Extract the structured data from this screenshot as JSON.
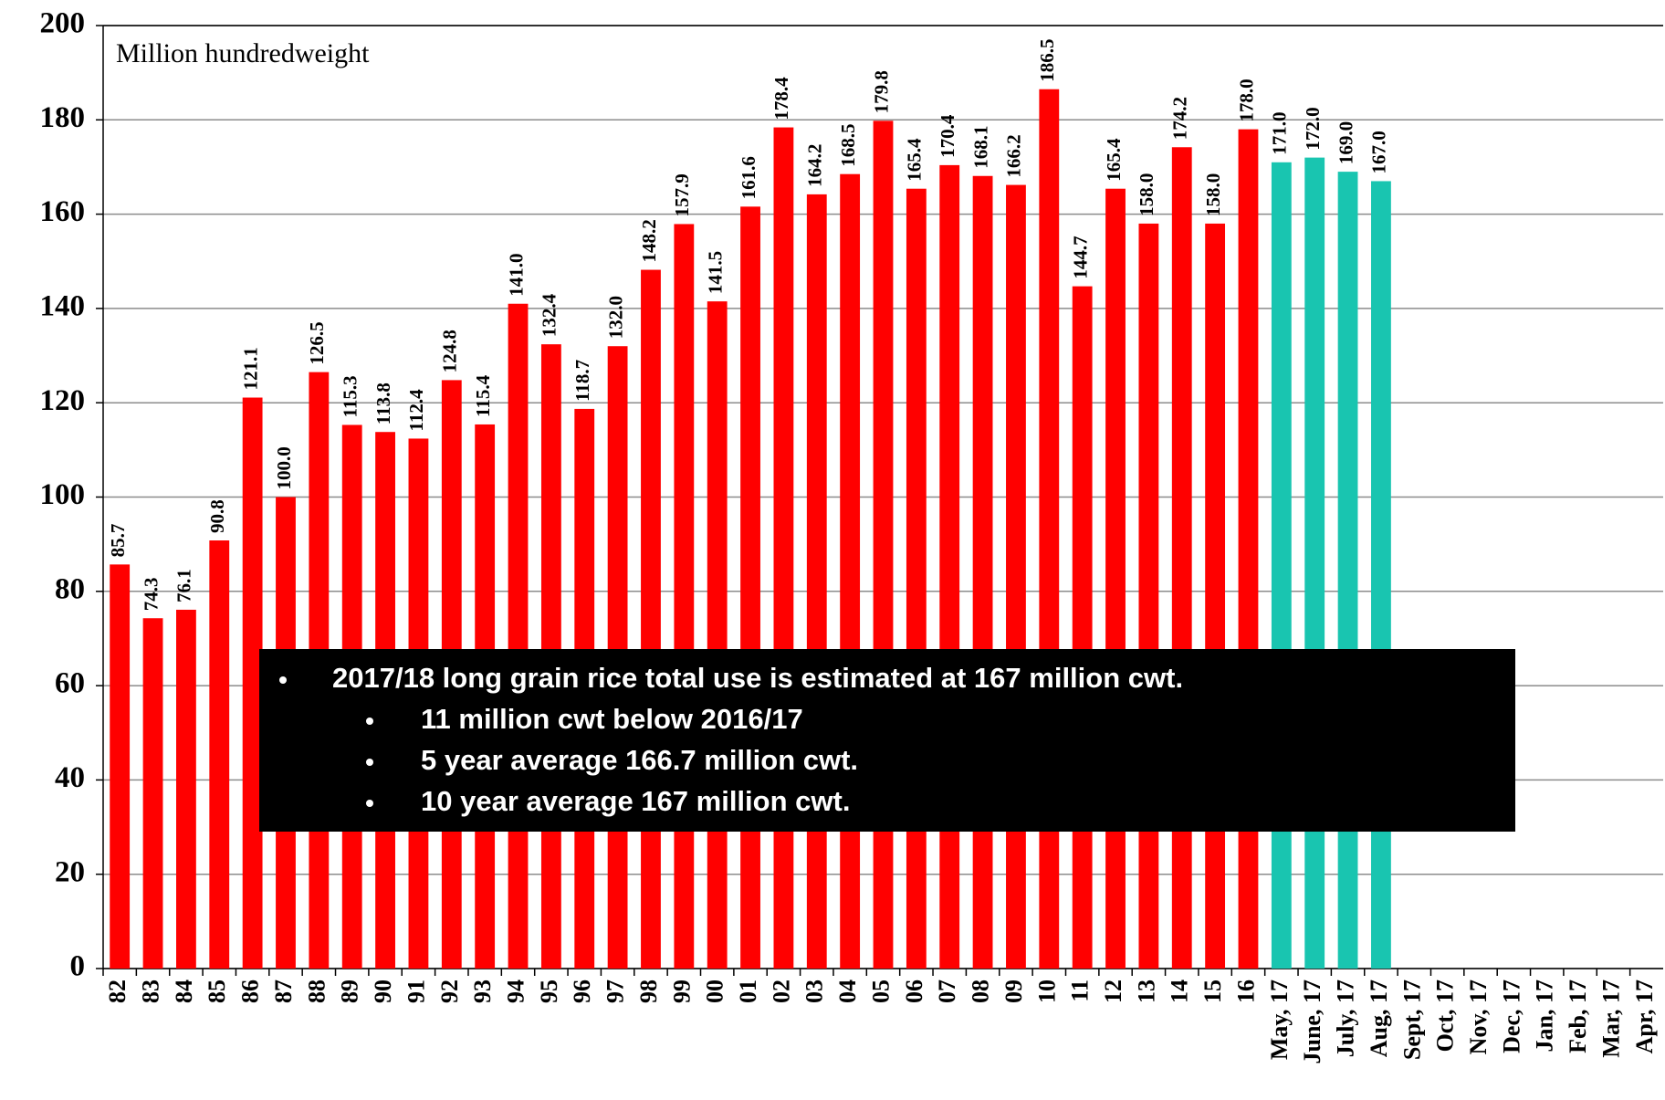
{
  "chart_data": {
    "type": "bar",
    "ylabel": "Million hundredweight",
    "categories": [
      "82",
      "83",
      "84",
      "85",
      "86",
      "87",
      "88",
      "89",
      "90",
      "91",
      "92",
      "93",
      "94",
      "95",
      "96",
      "97",
      "98",
      "99",
      "00",
      "01",
      "02",
      "03",
      "04",
      "05",
      "06",
      "07",
      "08",
      "09",
      "10",
      "11",
      "12",
      "13",
      "14",
      "15",
      "16",
      "May, 17",
      "June, 17",
      "July, 17",
      "Aug, 17",
      "Sept, 17",
      "Oct, 17",
      "Nov, 17",
      "Dec, 17",
      "Jan, 17",
      "Feb, 17",
      "Mar, 17",
      "Apr, 17"
    ],
    "values": [
      85.7,
      74.3,
      76.1,
      90.8,
      121.1,
      100.0,
      126.5,
      115.3,
      113.8,
      112.4,
      124.8,
      115.4,
      141.0,
      132.4,
      118.7,
      132.0,
      148.2,
      157.9,
      141.5,
      161.6,
      178.4,
      164.2,
      168.5,
      179.8,
      165.4,
      170.4,
      168.1,
      166.2,
      186.5,
      144.7,
      165.4,
      158.0,
      174.2,
      158.0,
      178.0,
      171.0,
      172.0,
      169.0,
      167.0,
      null,
      null,
      null,
      null,
      null,
      null,
      null,
      null
    ],
    "value_labels": [
      "85.7",
      "74.3",
      "76.1",
      "90.8",
      "121.1",
      "100.0",
      "126.5",
      "115.3",
      "113.8",
      "112.4",
      "124.8",
      "115.4",
      "141.0",
      "132.4",
      "118.7",
      "132.0",
      "148.2",
      "157.9",
      "141.5",
      "161.6",
      "178.4",
      "164.2",
      "168.5",
      "179.8",
      "165.4",
      "170.4",
      "168.1",
      "166.2",
      "186.5",
      "144.7",
      "165.4",
      "158.0",
      "174.2",
      "158.0",
      "178.0",
      "171.0",
      "172.0",
      "169.0",
      "167.0",
      null,
      null,
      null,
      null,
      null,
      null,
      null,
      null
    ],
    "colors": [
      "#ff0000",
      "#ff0000",
      "#ff0000",
      "#ff0000",
      "#ff0000",
      "#ff0000",
      "#ff0000",
      "#ff0000",
      "#ff0000",
      "#ff0000",
      "#ff0000",
      "#ff0000",
      "#ff0000",
      "#ff0000",
      "#ff0000",
      "#ff0000",
      "#ff0000",
      "#ff0000",
      "#ff0000",
      "#ff0000",
      "#ff0000",
      "#ff0000",
      "#ff0000",
      "#ff0000",
      "#ff0000",
      "#ff0000",
      "#ff0000",
      "#ff0000",
      "#ff0000",
      "#ff0000",
      "#ff0000",
      "#ff0000",
      "#ff0000",
      "#ff0000",
      "#ff0000",
      "#19c5b0",
      "#19c5b0",
      "#19c5b0",
      "#19c5b0",
      null,
      null,
      null,
      null,
      null,
      null,
      null,
      null
    ],
    "ylim": [
      0,
      200
    ],
    "yticks": [
      0,
      20,
      40,
      60,
      80,
      100,
      120,
      140,
      160,
      180,
      200
    ],
    "grid": true,
    "annotation": {
      "main": "2017/18 long grain rice total use is estimated at 167 million cwt.",
      "sub": [
        "11 million cwt below 2016/17",
        "5 year average 166.7 million cwt.",
        "10 year average 167 million cwt."
      ]
    }
  }
}
